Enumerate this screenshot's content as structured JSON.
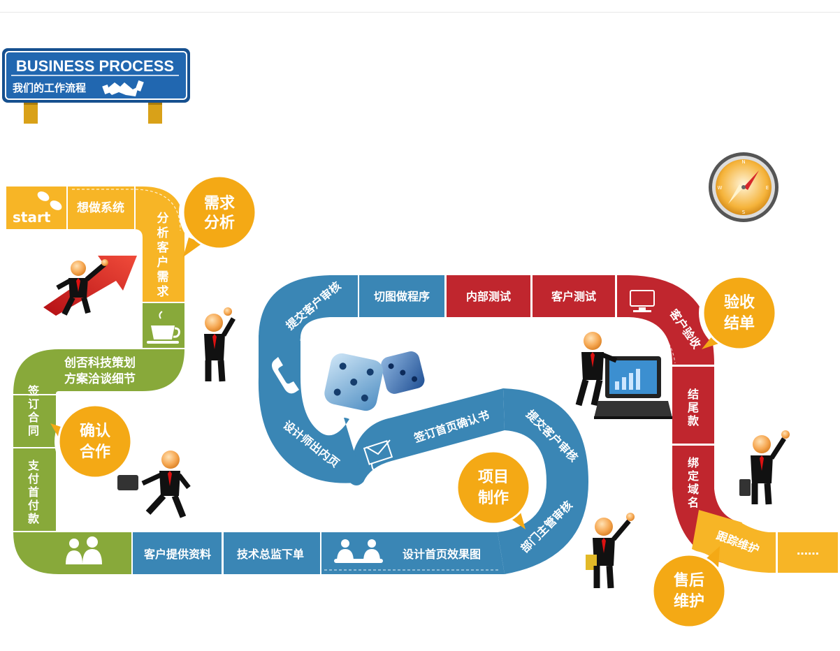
{
  "header": {
    "title": "BUSINESS PROCESS",
    "subtitle": "我们的工作流程",
    "handshake_icon": "handshake-icon"
  },
  "colors": {
    "yellow": "#f7b526",
    "green": "#88a93a",
    "blue": "#3a86b5",
    "red": "#c0262e",
    "bubble": "#f4a915",
    "sign_blue": "#1f5fa7"
  },
  "path": {
    "start": "start",
    "idea": "想做系统",
    "analyze": [
      "分",
      "析",
      "客",
      "户",
      "需",
      "求"
    ],
    "proposal_1": "创否科技策划",
    "proposal_2": "方案洽谈细节",
    "contract": [
      "签",
      "订",
      "合",
      "同"
    ],
    "prepay": [
      "支",
      "付",
      "首",
      "付",
      "款"
    ],
    "client_materials": "客户提供资料",
    "tech_order": "技术总监下单",
    "homepage_design": "设计首页效果图",
    "manager_review": "部门主管审核",
    "submit_review_1": "提交客户审核",
    "sign_homepage": "签订首页确认书",
    "inner_pages": "设计师出内页",
    "submit_review_2": "提交客户审核",
    "slice_code": "切图做程序",
    "internal_test": "内部测试",
    "client_test": "客户测试",
    "acceptance": "客户验收",
    "final_payment": [
      "结",
      "尾",
      "款"
    ],
    "bind_domain": [
      "绑",
      "定",
      "域",
      "名"
    ],
    "follow_up": "跟踪维护",
    "more": "……"
  },
  "bubbles": {
    "needs": [
      "需求",
      "分析"
    ],
    "confirm": [
      "确认",
      "合作"
    ],
    "production": [
      "项目",
      "制作"
    ],
    "acceptance": [
      "验收",
      "结单"
    ],
    "after_sales": [
      "售后",
      "维护"
    ]
  },
  "icons": [
    "footprints-icon",
    "coffee-cup-icon",
    "people-icon",
    "meeting-icon",
    "phone-icon",
    "envelope-icon",
    "computer-icon",
    "compass-icon",
    "dice-icon",
    "laptop-icon",
    "rising-arrow-icon"
  ]
}
